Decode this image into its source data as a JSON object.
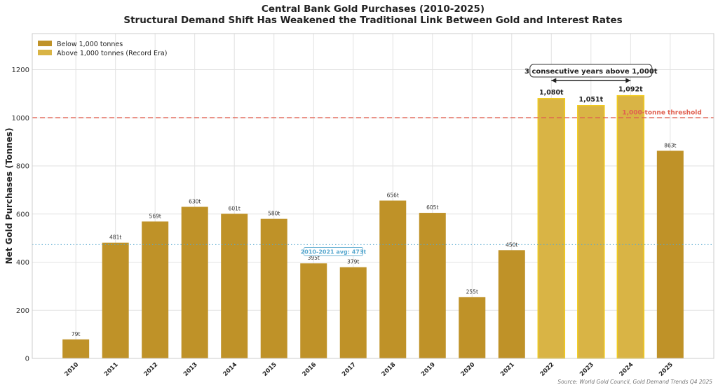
{
  "chart_data": {
    "type": "bar",
    "title": "Central Bank Gold Purchases (2010-2025)",
    "subtitle": "Structural Demand Shift Has Weakened the Traditional Link Between Gold and Interest Rates",
    "xlabel": "",
    "ylabel": "Net Gold Purchases (Tonnes)",
    "ylim": [
      0,
      1350
    ],
    "yticks": [
      0,
      200,
      400,
      600,
      800,
      1000,
      1200
    ],
    "grid": true,
    "categories": [
      "2010",
      "2011",
      "2012",
      "2013",
      "2014",
      "2015",
      "2016",
      "2017",
      "2018",
      "2019",
      "2020",
      "2021",
      "2022",
      "2023",
      "2024",
      "2025"
    ],
    "values": [
      79,
      481,
      569,
      630,
      601,
      580,
      395,
      379,
      656,
      605,
      255,
      450,
      1080,
      1051,
      1092,
      863
    ],
    "data_labels": [
      "79t",
      "481t",
      "569t",
      "630t",
      "601t",
      "580t",
      "395t",
      "379t",
      "656t",
      "605t",
      "255t",
      "450t",
      "1,080t",
      "1,051t",
      "1,092t",
      "863t"
    ],
    "legend": {
      "placement": "top-left",
      "entries": [
        {
          "label": "Below 1,000 tonnes",
          "color": "#bf9228"
        },
        {
          "label": "Above 1,000 tonnes (Record Era)",
          "color": "#d9b445"
        }
      ]
    },
    "colors": {
      "below": "#bf9228",
      "above": "#d9b445",
      "above_edge": "#f2cc1c",
      "threshold": "#e06050",
      "average": "#5aa9cf"
    },
    "threshold": {
      "value": 1000,
      "label": "1,000-tonne threshold"
    },
    "average": {
      "value": 473,
      "label": "2010-2021 avg: 473t"
    },
    "annotation": {
      "text": "3 consecutive years above 1,000t",
      "from": "2022",
      "to": "2024"
    },
    "source": "Source: World Gold Council, Gold Demand Trends Q4 2025"
  }
}
